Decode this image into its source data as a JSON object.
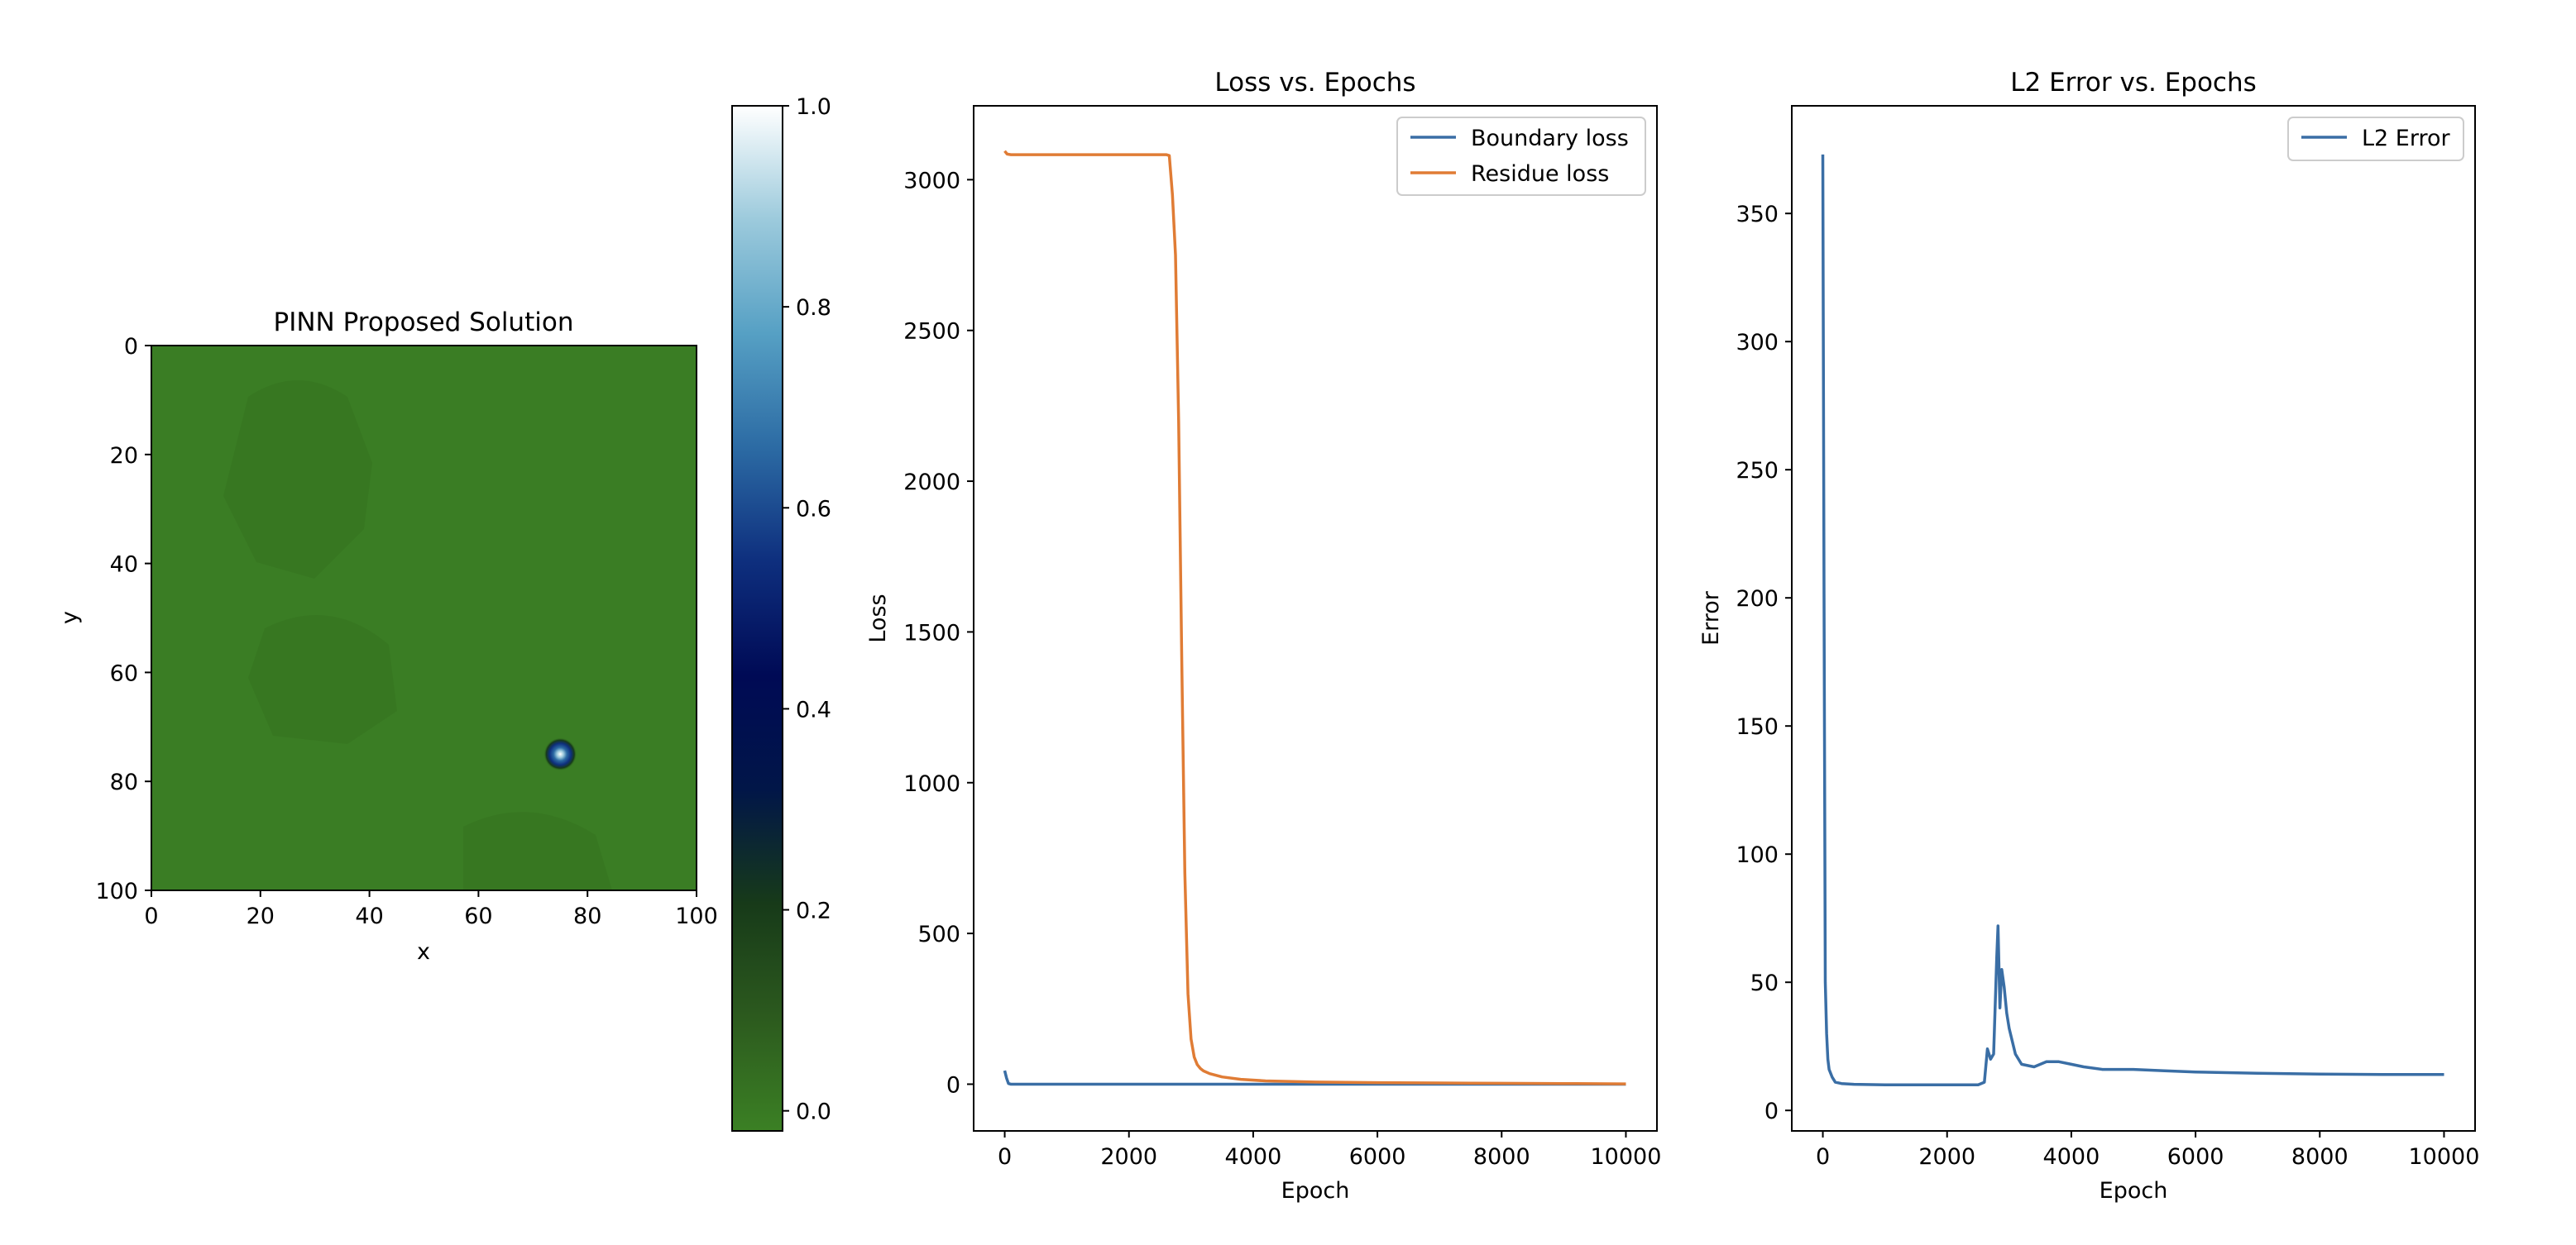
{
  "colors": {
    "field_background": "#3a7d24",
    "boundary_loss": "#3a6ea5",
    "residue_loss": "#e07c35",
    "l2_error": "#3a6ea5",
    "colormap": [
      "#3b8024",
      "#2c5a1e",
      "#173a19",
      "#011648",
      "#000a55",
      "#0e2f7e",
      "#2c6ba4",
      "#56a0c4",
      "#9ccadc",
      "#ffffff"
    ]
  },
  "chart_data": [
    {
      "type": "heatmap",
      "title": "PINN Proposed Solution",
      "xlabel": "x",
      "ylabel": "y",
      "xlim": [
        0,
        100
      ],
      "ylim": [
        100,
        0
      ],
      "xticks": [
        0,
        20,
        40,
        60,
        80,
        100
      ],
      "yticks": [
        0,
        20,
        40,
        60,
        80,
        100
      ],
      "background_value": 0.0,
      "peak": {
        "x": 75,
        "y": 75,
        "value": 1.0
      },
      "colorbar": {
        "ticks": [
          0.0,
          0.2,
          0.4,
          0.6,
          0.8,
          1.0
        ],
        "tick_labels": [
          "0.0",
          "0.2",
          "0.4",
          "0.6",
          "0.8",
          "1.0"
        ],
        "range": [
          -0.02,
          1.0
        ]
      }
    },
    {
      "type": "line",
      "title": "Loss vs. Epochs",
      "xlabel": "Epoch",
      "ylabel": "Loss",
      "xlim": [
        -500,
        10500
      ],
      "ylim": [
        -155,
        3245
      ],
      "xticks": [
        0,
        2000,
        4000,
        6000,
        8000,
        10000
      ],
      "yticks": [
        0,
        500,
        1000,
        1500,
        2000,
        2500,
        3000
      ],
      "legend_position": "top-right",
      "series": [
        {
          "name": "Boundary loss",
          "x": [
            0,
            30,
            60,
            100,
            2000,
            4000,
            6000,
            8000,
            10000
          ],
          "y": [
            45,
            20,
            2,
            0,
            0,
            0,
            0,
            0,
            0
          ]
        },
        {
          "name": "Residue loss",
          "x": [
            0,
            40,
            100,
            500,
            1000,
            2000,
            2500,
            2600,
            2650,
            2700,
            2750,
            2800,
            2850,
            2900,
            2950,
            3000,
            3050,
            3100,
            3150,
            3200,
            3300,
            3500,
            3800,
            4200,
            5000,
            6000,
            7000,
            8000,
            9000,
            10000
          ],
          "y": [
            3095,
            3085,
            3083,
            3083,
            3083,
            3083,
            3083,
            3083,
            3080,
            2950,
            2750,
            2200,
            1400,
            700,
            300,
            150,
            90,
            65,
            52,
            44,
            35,
            24,
            16,
            11,
            7,
            5,
            4,
            3,
            2,
            1
          ]
        }
      ]
    },
    {
      "type": "line",
      "title": "L2 Error vs. Epochs",
      "xlabel": "Epoch",
      "ylabel": "Error",
      "xlim": [
        -500,
        10500
      ],
      "ylim": [
        -8,
        392
      ],
      "xticks": [
        0,
        2000,
        4000,
        6000,
        8000,
        10000
      ],
      "yticks": [
        0,
        50,
        100,
        150,
        200,
        250,
        300,
        350
      ],
      "legend_position": "top-right",
      "series": [
        {
          "name": "L2 Error",
          "x": [
            0,
            20,
            40,
            60,
            80,
            100,
            150,
            200,
            300,
            500,
            1000,
            2000,
            2500,
            2600,
            2650,
            2700,
            2750,
            2800,
            2820,
            2850,
            2880,
            2920,
            2960,
            3000,
            3100,
            3200,
            3400,
            3600,
            3800,
            4000,
            4200,
            4500,
            5000,
            5500,
            6000,
            7000,
            8000,
            9000,
            10000
          ],
          "y": [
            373,
            200,
            50,
            30,
            20,
            16,
            13,
            11,
            10.5,
            10.2,
            10,
            10,
            10,
            11,
            24,
            20,
            22,
            60,
            72,
            40,
            55,
            48,
            38,
            32,
            22,
            18,
            17,
            19,
            19,
            18,
            17,
            16,
            16,
            15.5,
            15,
            14.5,
            14.2,
            14,
            14
          ]
        }
      ]
    }
  ]
}
